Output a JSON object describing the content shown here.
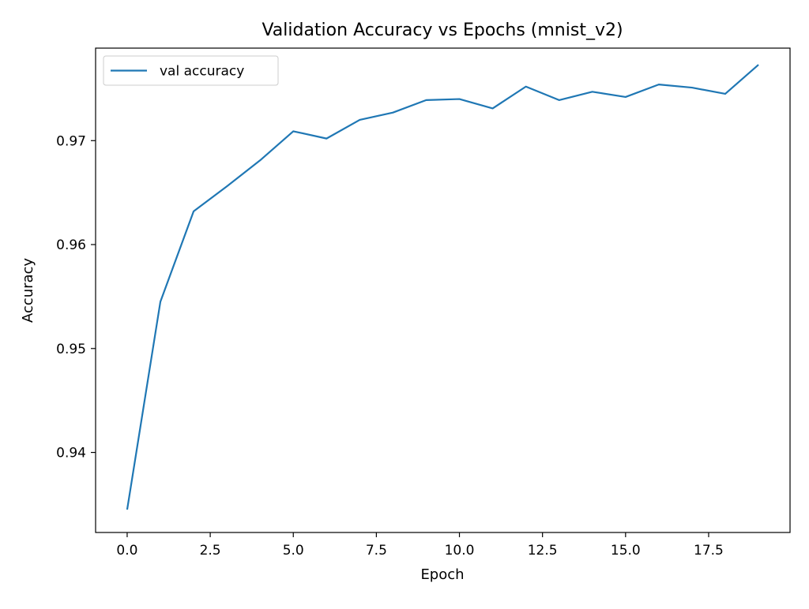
{
  "chart_data": {
    "type": "line",
    "title": "Validation Accuracy vs Epochs (mnist_v2)",
    "xlabel": "Epoch",
    "ylabel": "Accuracy",
    "xlim": [
      -0.95,
      19.95
    ],
    "ylim": [
      0.9323,
      0.9789
    ],
    "x_ticks": [
      0.0,
      2.5,
      5.0,
      7.5,
      10.0,
      12.5,
      15.0,
      17.5
    ],
    "x_tick_labels": [
      "0.0",
      "2.5",
      "5.0",
      "7.5",
      "10.0",
      "12.5",
      "15.0",
      "17.5"
    ],
    "y_ticks": [
      0.94,
      0.95,
      0.96,
      0.97
    ],
    "y_tick_labels": [
      "0.94",
      "0.95",
      "0.96",
      "0.97"
    ],
    "grid": false,
    "legend_position": "upper-left",
    "series": [
      {
        "name": "val accuracy",
        "color": "#1f77b4",
        "x": [
          0,
          1,
          2,
          3,
          4,
          5,
          6,
          7,
          8,
          9,
          10,
          11,
          12,
          13,
          14,
          15,
          16,
          17,
          18,
          19
        ],
        "values": [
          0.9345,
          0.9545,
          0.9632,
          0.9656,
          0.9681,
          0.9709,
          0.9702,
          0.972,
          0.9727,
          0.9739,
          0.974,
          0.9731,
          0.9752,
          0.9739,
          0.9747,
          0.9742,
          0.9754,
          0.9751,
          0.9745,
          0.9773
        ]
      }
    ]
  }
}
